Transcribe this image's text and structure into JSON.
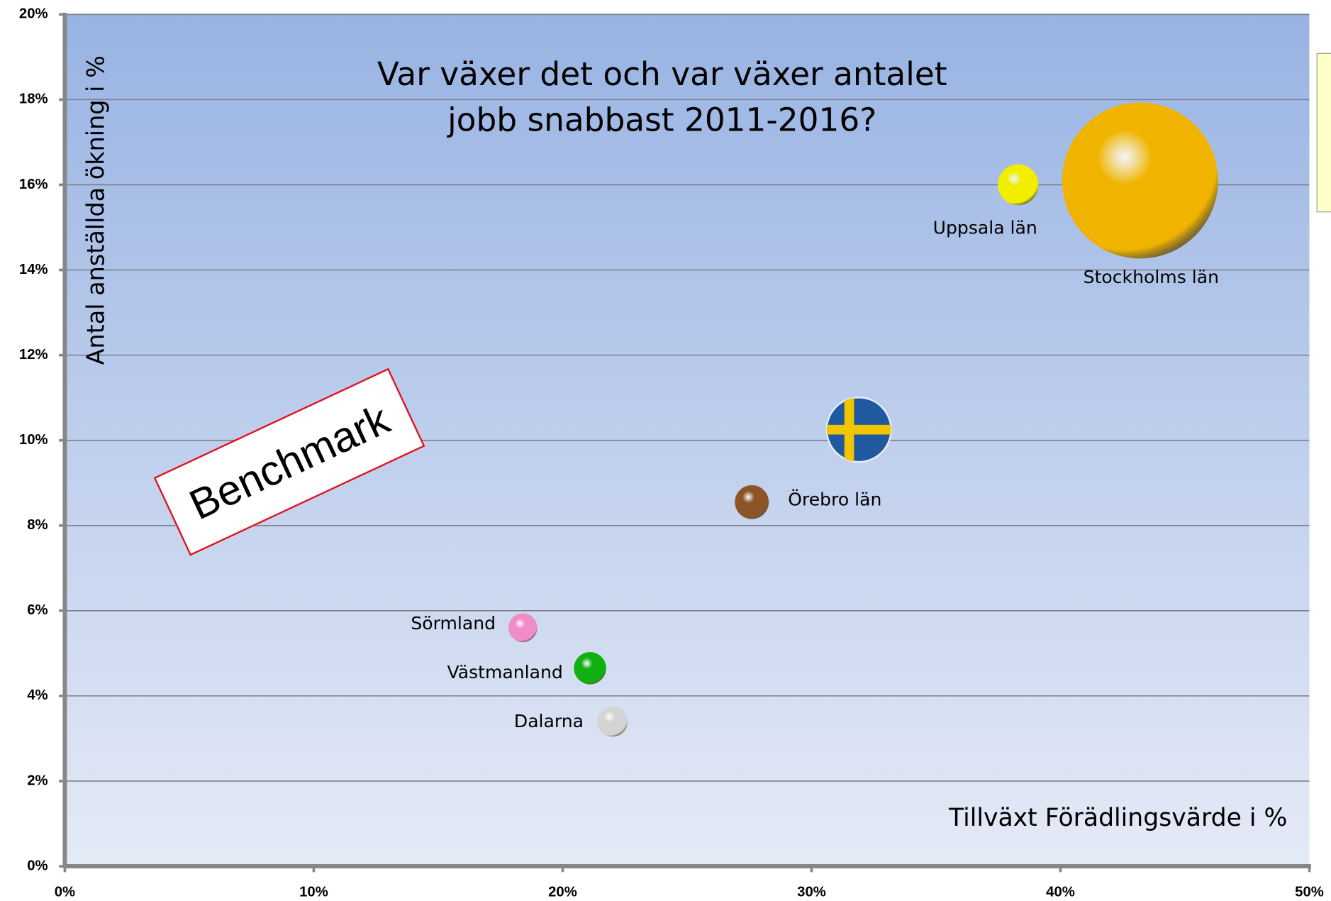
{
  "chart_data": {
    "type": "bubble",
    "title": [
      "Var växer det och var växer antalet",
      "jobb snabbast 2011-2016?"
    ],
    "x_label": "Tillväxt Förädlingsvärde i %",
    "y_label": "Antal anställda ökning i %",
    "annotation": "Benchmark",
    "labels": [
      "Stockholms län",
      "Uppsala län",
      null,
      "Örebro län",
      "Sörmland",
      "Västmanland",
      "Dalarna"
    ],
    "x": [
      43.2,
      38.3,
      31.9,
      27.6,
      18.4,
      21.1,
      22.0
    ],
    "y": [
      16.1,
      16.0,
      10.25,
      8.55,
      5.6,
      4.65,
      3.4
    ],
    "sizes": [
      8464,
      576,
      1444,
      400,
      289,
      361,
      324
    ],
    "colors": [
      "#f0b400",
      "#f2ee00",
      "#1f5aa0",
      "#8b5526",
      "#f08cc8",
      "#10b010",
      "#d4d4d4"
    ],
    "markers": [
      "sphere",
      "sphere",
      "flag",
      "sphere",
      "sphere",
      "sphere",
      "sphere"
    ],
    "xlim": [
      0,
      50
    ],
    "ylim": [
      0,
      20
    ],
    "xticks": [
      {
        "value": 0,
        "label": "0%"
      },
      {
        "value": 10,
        "label": "10%"
      },
      {
        "value": 20,
        "label": "20%"
      },
      {
        "value": 30,
        "label": "30%"
      },
      {
        "value": 40,
        "label": "40%"
      },
      {
        "value": 50,
        "label": "50%"
      }
    ],
    "yticks": [
      {
        "value": 0,
        "label": "0%"
      },
      {
        "value": 2,
        "label": "2%"
      },
      {
        "value": 4,
        "label": "4%"
      },
      {
        "value": 6,
        "label": "6%"
      },
      {
        "value": 8,
        "label": "8%"
      },
      {
        "value": 10,
        "label": "10%"
      },
      {
        "value": 12,
        "label": "12%"
      },
      {
        "value": 14,
        "label": "14%"
      },
      {
        "value": 16,
        "label": "16%"
      },
      {
        "value": 18,
        "label": "18%"
      },
      {
        "value": 20,
        "label": "20%"
      }
    ],
    "grid": true
  }
}
